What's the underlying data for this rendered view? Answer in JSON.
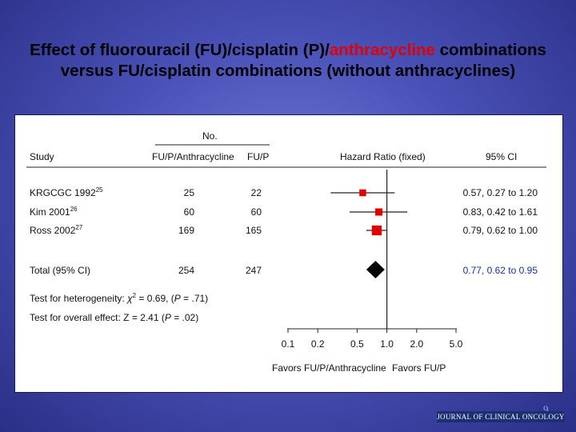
{
  "slide": {
    "title_pre": "Effect of fluorouracil (FU)/cisplatin (P)/",
    "title_highlight": "anthracycline",
    "title_post": " combinations versus FU/cisplatin combinations (without anthracyclines)",
    "page_number": "9",
    "journal": "JOURNAL OF CLINICAL ONCOLOGY",
    "highlight_color": "#e00000"
  },
  "chart_data": {
    "type": "forest",
    "headers": {
      "no_group": "No.",
      "study": "Study",
      "col_a": "FU/P/Anthracycline",
      "col_b": "FU/P",
      "effect": "Hazard Ratio (fixed)",
      "ci": "95% CI"
    },
    "studies": [
      {
        "name": "KRGCGC 1992",
        "ref": "25",
        "n_a": "25",
        "n_b": "22",
        "hr": 0.57,
        "lo": 0.27,
        "hi": 1.2,
        "ci_text": "0.57, 0.27 to 1.20",
        "weight": 0.15
      },
      {
        "name": "Kim 2001",
        "ref": "26",
        "n_a": "60",
        "n_b": "60",
        "hr": 0.83,
        "lo": 0.42,
        "hi": 1.61,
        "ci_text": "0.83, 0.42 to 1.61",
        "weight": 0.2
      },
      {
        "name": "Ross 2002",
        "ref": "27",
        "n_a": "169",
        "n_b": "165",
        "hr": 0.79,
        "lo": 0.62,
        "hi": 1.0,
        "ci_text": "0.79, 0.62 to 1.00",
        "weight": 0.65
      }
    ],
    "total": {
      "name": "Total (95% CI)",
      "n_a": "254",
      "n_b": "247",
      "hr": 0.77,
      "lo": 0.62,
      "hi": 0.95,
      "ci_text": "0.77, 0.62 to 0.95"
    },
    "heterogeneity_prefix": "Test for heterogeneity: ",
    "heterogeneity_chi": "χ",
    "heterogeneity_suffix": " = 0.69, (",
    "heterogeneity_p_label": "P",
    "heterogeneity_p_value": " = .71)",
    "overall_prefix": "Test for overall effect: Z = 2.41 (",
    "overall_p_label": "P",
    "overall_p_value": " = .02)",
    "x_scale": "log",
    "x_ticks": [
      0.1,
      0.2,
      0.5,
      1.0,
      2.0,
      5.0
    ],
    "x_tick_labels": [
      "0.1",
      "0.2",
      "0.5",
      "1.0",
      "2.0",
      "5.0"
    ],
    "xlim": [
      0.1,
      5.0
    ],
    "reference_line": 1.0,
    "favors_left": "Favors FU/P/Anthracycline",
    "favors_right": "Favors FU/P",
    "study_marker_color": "#e00000",
    "total_marker_color": "#000000",
    "total_ci_color": "#1a2fa0"
  }
}
